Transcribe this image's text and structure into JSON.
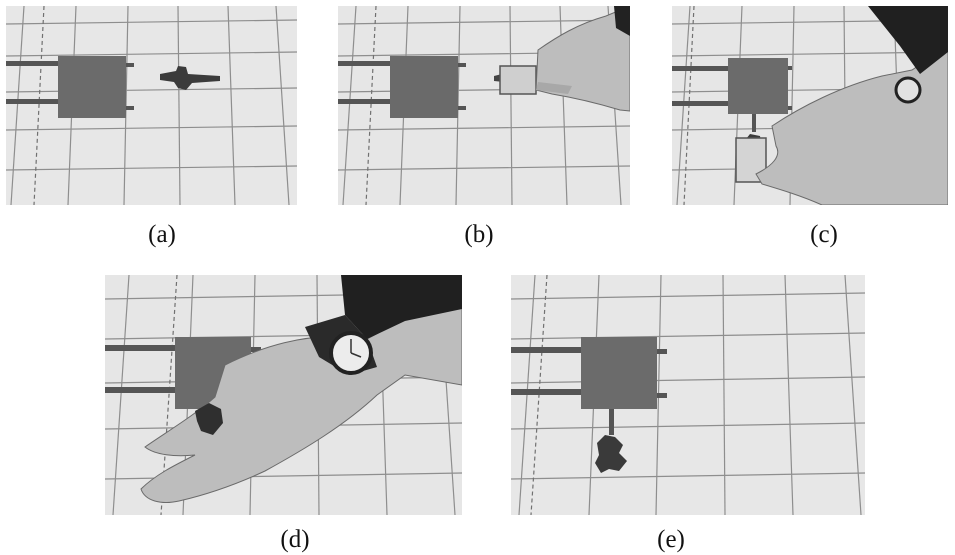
{
  "figure": {
    "panels": [
      {
        "caption": "(a)"
      },
      {
        "caption": "(b)"
      },
      {
        "caption": "(c)"
      },
      {
        "caption": "(d)"
      },
      {
        "caption": "(e)"
      }
    ]
  },
  "colors": {
    "floor": "#e6e6e6",
    "grid_line": "#8f8f8f",
    "box": "#6d6d6d",
    "shadow": "#3c3c3c",
    "skin": "#bdbdbd",
    "sleeve": "#202020"
  }
}
